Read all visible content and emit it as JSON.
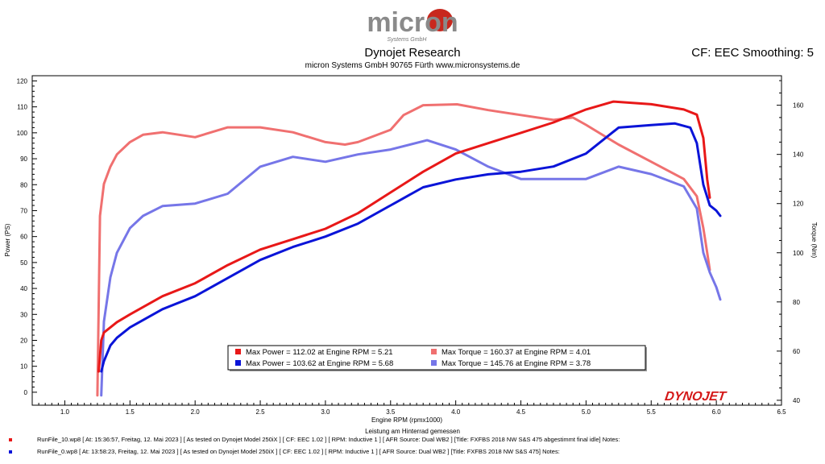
{
  "header": {
    "logo_text": "micron",
    "logo_sub": "Systems GmbH",
    "title": "Dynojet Research",
    "subtitle": "micron Systems GmbH  90765 Fürth www.micronsystems.de",
    "smoothing": "CF: EEC Smoothing: 5"
  },
  "chart_data": {
    "type": "line",
    "title": "Dynojet Research",
    "xlabel": "Engine RPM (rpmx1000)",
    "ylabel": "Power (PS)",
    "y2label": "Torque (Nm)",
    "xlim": [
      0.75,
      6.5
    ],
    "ylim": [
      -5,
      122
    ],
    "y2lim": [
      38,
      172
    ],
    "x_ticks": [
      "1.0",
      "1.5",
      "2.0",
      "2.5",
      "3.0",
      "3.5",
      "4.0",
      "4.5",
      "5.0",
      "5.5",
      "6.0",
      "6.5"
    ],
    "y_ticks": [
      0,
      10,
      20,
      30,
      40,
      50,
      60,
      70,
      80,
      90,
      100,
      110,
      120
    ],
    "y2_ticks": [
      40,
      60,
      80,
      100,
      120,
      140,
      160
    ],
    "grid": false,
    "legend_position": "bottom-center",
    "series": [
      {
        "name": "Max Power = 112.02 at Engine RPM = 5.21",
        "axis": "left",
        "color": "#e81818",
        "x": [
          1.26,
          1.28,
          1.3,
          1.4,
          1.5,
          1.75,
          2.0,
          2.25,
          2.5,
          2.75,
          3.0,
          3.25,
          3.5,
          3.75,
          4.0,
          4.25,
          4.5,
          4.75,
          5.0,
          5.21,
          5.5,
          5.75,
          5.85,
          5.9,
          5.93,
          5.95
        ],
        "y": [
          8,
          20,
          23,
          27,
          30,
          37,
          42,
          49,
          55,
          59,
          63,
          69,
          77,
          85,
          92,
          96,
          100,
          104,
          109,
          112.02,
          111,
          109,
          107,
          98,
          82,
          75
        ]
      },
      {
        "name": "Max Power = 103.62 at Engine RPM = 5.68",
        "axis": "left",
        "color": "#0a14d8",
        "x": [
          1.28,
          1.3,
          1.35,
          1.4,
          1.5,
          1.75,
          2.0,
          2.25,
          2.5,
          2.75,
          3.0,
          3.25,
          3.5,
          3.75,
          4.0,
          4.25,
          4.5,
          4.75,
          5.0,
          5.25,
          5.5,
          5.68,
          5.8,
          5.85,
          5.9,
          5.95,
          6.0,
          6.03
        ],
        "y": [
          8,
          12,
          18,
          21,
          25,
          32,
          37,
          44,
          51,
          56,
          60,
          65,
          72,
          79,
          82,
          84,
          85,
          87,
          92,
          102,
          103,
          103.62,
          102,
          96,
          80,
          72,
          70,
          68
        ]
      },
      {
        "name": "Max Torque = 160.37 at Engine RPM = 4.01",
        "axis": "right",
        "color": "#f07070",
        "x": [
          1.25,
          1.27,
          1.3,
          1.35,
          1.4,
          1.5,
          1.6,
          1.75,
          2.0,
          2.25,
          2.5,
          2.75,
          3.0,
          3.15,
          3.25,
          3.5,
          3.6,
          3.75,
          4.01,
          4.25,
          4.5,
          4.75,
          4.9,
          5.0,
          5.25,
          5.5,
          5.75,
          5.85,
          5.9,
          5.93,
          5.95
        ],
        "y": [
          42,
          115,
          128,
          135,
          140,
          145,
          148,
          149,
          147,
          151,
          151,
          149,
          145,
          144,
          145,
          150,
          156,
          160,
          160.37,
          158,
          156,
          154,
          155,
          152,
          144,
          137,
          130,
          123,
          110,
          100,
          93
        ]
      },
      {
        "name": "Max Torque = 145.76 at Engine RPM = 3.78",
        "axis": "right",
        "color": "#7676e8",
        "x": [
          1.28,
          1.3,
          1.35,
          1.4,
          1.5,
          1.6,
          1.75,
          2.0,
          2.25,
          2.5,
          2.75,
          3.0,
          3.25,
          3.5,
          3.78,
          4.0,
          4.25,
          4.5,
          4.75,
          5.0,
          5.25,
          5.5,
          5.75,
          5.85,
          5.9,
          5.95,
          6.0,
          6.03
        ],
        "y": [
          42,
          72,
          90,
          100,
          110,
          115,
          119,
          120,
          124,
          135,
          139,
          137,
          140,
          142,
          145.76,
          142,
          135,
          130,
          130,
          130,
          135,
          132,
          127,
          118,
          100,
          92,
          86,
          81
        ]
      }
    ],
    "annotation": "Leistung am Hinterrad gemessen",
    "brand": "DYNOJET"
  },
  "footer": {
    "run1": "RunFile_10.wp8 [ At: 15:36:57, Freitag, 12. Mai 2023 ] [ As tested on Dynojet Model 250iX ] [ CF: EEC 1.02 ] [ RPM: Inductive 1 ] [ AFR Source: Dual WB2 ] [Title: FXFBS 2018 NW S&S 475  abgestimmt final idle]  Notes:",
    "run2": "RunFile_0.wp8 [ At: 13:58:23, Freitag, 12. Mai 2023 ] [ As tested on Dynojet Model 250iX ] [ CF: EEC 1.02 ] [ RPM: Inductive 1 ] [ AFR Source: Dual WB2 ] [Title: FXFBS 2018 NW S&S 475]  Notes:",
    "run1_color": "#e81818",
    "run2_color": "#0a14d8"
  }
}
